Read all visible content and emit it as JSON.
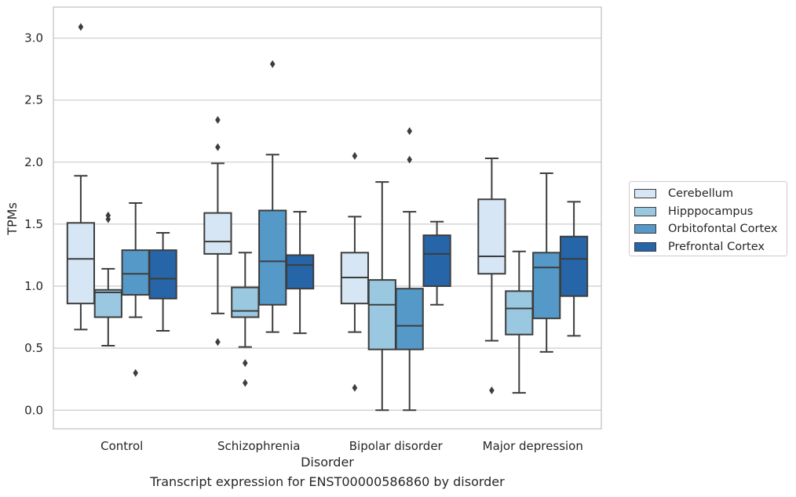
{
  "chart_data": {
    "type": "box",
    "title": "",
    "xlabel": "Disorder",
    "ylabel": "TPMs",
    "caption": "Transcript expression for ENST00000586860 by disorder",
    "ylim": [
      -0.15,
      3.25
    ],
    "yticks": [
      "0.0",
      "0.5",
      "1.0",
      "1.5",
      "2.0",
      "2.5",
      "3.0"
    ],
    "grid": "horizontal",
    "legend_position": "right",
    "categories": [
      "Control",
      "Schizophrenia",
      "Bipolar disorder",
      "Major depression"
    ],
    "series": [
      {
        "name": "Cerebellum",
        "color": "#d6e6f4",
        "boxes": [
          {
            "whisker_low": 0.65,
            "q1": 0.86,
            "median": 1.22,
            "q3": 1.51,
            "whisker_high": 1.89,
            "outliers": [
              3.09
            ]
          },
          {
            "whisker_low": 0.78,
            "q1": 1.26,
            "median": 1.36,
            "q3": 1.59,
            "whisker_high": 1.99,
            "outliers": [
              2.34,
              2.12,
              0.55
            ]
          },
          {
            "whisker_low": 0.63,
            "q1": 0.86,
            "median": 1.07,
            "q3": 1.27,
            "whisker_high": 1.56,
            "outliers": [
              2.05,
              0.18
            ]
          },
          {
            "whisker_low": 0.56,
            "q1": 1.1,
            "median": 1.24,
            "q3": 1.7,
            "whisker_high": 2.03,
            "outliers": [
              0.16
            ]
          }
        ]
      },
      {
        "name": "Hipppocampus",
        "color": "#9ac8e0",
        "boxes": [
          {
            "whisker_low": 0.52,
            "q1": 0.75,
            "median": 0.95,
            "q3": 0.97,
            "whisker_high": 1.14,
            "outliers": [
              1.57,
              1.54
            ]
          },
          {
            "whisker_low": 0.51,
            "q1": 0.75,
            "median": 0.8,
            "q3": 0.99,
            "whisker_high": 1.27,
            "outliers": [
              0.38,
              0.22
            ]
          },
          {
            "whisker_low": 0.0,
            "q1": 0.49,
            "median": 0.85,
            "q3": 1.05,
            "whisker_high": 1.84,
            "outliers": []
          },
          {
            "whisker_low": 0.14,
            "q1": 0.61,
            "median": 0.82,
            "q3": 0.96,
            "whisker_high": 1.28,
            "outliers": []
          }
        ]
      },
      {
        "name": "Orbitofontal Cortex",
        "color": "#5599c8",
        "boxes": [
          {
            "whisker_low": 0.75,
            "q1": 0.93,
            "median": 1.1,
            "q3": 1.29,
            "whisker_high": 1.67,
            "outliers": [
              0.3
            ]
          },
          {
            "whisker_low": 0.63,
            "q1": 0.85,
            "median": 1.2,
            "q3": 1.61,
            "whisker_high": 2.06,
            "outliers": [
              2.79
            ]
          },
          {
            "whisker_low": 0.0,
            "q1": 0.49,
            "median": 0.68,
            "q3": 0.98,
            "whisker_high": 1.6,
            "outliers": [
              2.25,
              2.02
            ]
          },
          {
            "whisker_low": 0.47,
            "q1": 0.74,
            "median": 1.15,
            "q3": 1.27,
            "whisker_high": 1.91,
            "outliers": []
          }
        ]
      },
      {
        "name": "Prefrontal Cortex",
        "color": "#2565a8",
        "boxes": [
          {
            "whisker_low": 0.64,
            "q1": 0.9,
            "median": 1.06,
            "q3": 1.29,
            "whisker_high": 1.43,
            "outliers": []
          },
          {
            "whisker_low": 0.62,
            "q1": 0.98,
            "median": 1.17,
            "q3": 1.25,
            "whisker_high": 1.6,
            "outliers": []
          },
          {
            "whisker_low": 0.85,
            "q1": 1.0,
            "median": 1.26,
            "q3": 1.41,
            "whisker_high": 1.52,
            "outliers": []
          },
          {
            "whisker_low": 0.6,
            "q1": 0.92,
            "median": 1.22,
            "q3": 1.4,
            "whisker_high": 1.68,
            "outliers": []
          }
        ]
      }
    ]
  }
}
